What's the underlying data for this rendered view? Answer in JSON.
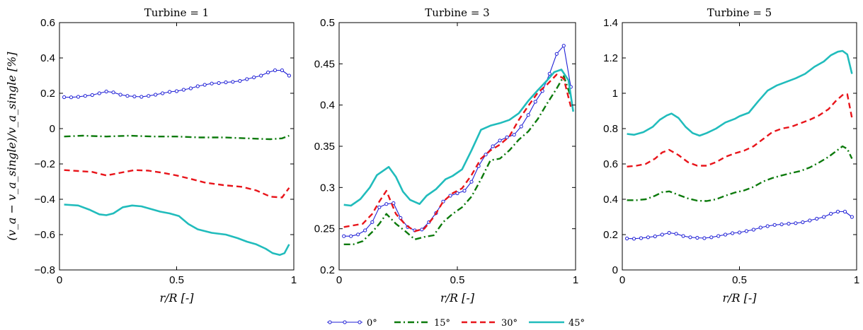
{
  "chart_data": [
    {
      "type": "line",
      "title": "Turbine = 1",
      "xlabel": "r/R [-]",
      "ylabel": "(v_a − v_a_single)/v_a_single [%]",
      "xlim": [
        0,
        1
      ],
      "ylim": [
        -0.8,
        0.6
      ],
      "xticks": [
        "0",
        "0.5",
        "1"
      ],
      "yticks": [
        "−0.8",
        "−0.6",
        "−0.4",
        "−0.2",
        "0",
        "0.2",
        "0.4",
        "0.6"
      ],
      "series": [
        {
          "name": "0°",
          "color": "#1f1fd6",
          "style": "solid-marker",
          "x": [
            0.02,
            0.05,
            0.08,
            0.11,
            0.14,
            0.17,
            0.2,
            0.23,
            0.26,
            0.29,
            0.32,
            0.35,
            0.38,
            0.41,
            0.44,
            0.47,
            0.5,
            0.53,
            0.56,
            0.59,
            0.62,
            0.65,
            0.68,
            0.71,
            0.74,
            0.77,
            0.8,
            0.83,
            0.86,
            0.89,
            0.92,
            0.95,
            0.98
          ],
          "y": [
            0.178,
            0.177,
            0.18,
            0.185,
            0.19,
            0.2,
            0.21,
            0.205,
            0.192,
            0.185,
            0.182,
            0.18,
            0.185,
            0.192,
            0.2,
            0.208,
            0.212,
            0.22,
            0.228,
            0.24,
            0.248,
            0.255,
            0.258,
            0.262,
            0.265,
            0.27,
            0.28,
            0.29,
            0.3,
            0.318,
            0.33,
            0.33,
            0.3
          ]
        },
        {
          "name": "15°",
          "color": "#0c7a0c",
          "style": "dashdot",
          "x": [
            0.02,
            0.1,
            0.2,
            0.3,
            0.4,
            0.5,
            0.6,
            0.7,
            0.8,
            0.9,
            0.95,
            0.98
          ],
          "y": [
            -0.045,
            -0.04,
            -0.045,
            -0.04,
            -0.045,
            -0.045,
            -0.05,
            -0.05,
            -0.055,
            -0.06,
            -0.055,
            -0.04
          ]
        },
        {
          "name": "30°",
          "color": "#e8141a",
          "style": "dashed",
          "x": [
            0.02,
            0.08,
            0.14,
            0.2,
            0.26,
            0.32,
            0.38,
            0.44,
            0.5,
            0.56,
            0.62,
            0.7,
            0.78,
            0.84,
            0.9,
            0.95,
            0.98
          ],
          "y": [
            -0.235,
            -0.24,
            -0.245,
            -0.265,
            -0.25,
            -0.235,
            -0.238,
            -0.25,
            -0.265,
            -0.285,
            -0.305,
            -0.32,
            -0.33,
            -0.35,
            -0.385,
            -0.39,
            -0.335
          ]
        },
        {
          "name": "45°",
          "color": "#21bcbc",
          "style": "solid-thick",
          "x": [
            0.02,
            0.08,
            0.13,
            0.17,
            0.2,
            0.23,
            0.27,
            0.31,
            0.35,
            0.39,
            0.43,
            0.47,
            0.51,
            0.55,
            0.59,
            0.65,
            0.71,
            0.76,
            0.8,
            0.84,
            0.88,
            0.91,
            0.94,
            0.96,
            0.98
          ],
          "y": [
            -0.43,
            -0.435,
            -0.46,
            -0.485,
            -0.49,
            -0.48,
            -0.445,
            -0.435,
            -0.44,
            -0.455,
            -0.47,
            -0.48,
            -0.495,
            -0.54,
            -0.57,
            -0.59,
            -0.6,
            -0.62,
            -0.64,
            -0.655,
            -0.68,
            -0.705,
            -0.715,
            -0.705,
            -0.655
          ]
        }
      ]
    },
    {
      "type": "line",
      "title": "Turbine = 3",
      "xlabel": "r/R [-]",
      "xlim": [
        0,
        1
      ],
      "ylim": [
        0.2,
        0.5
      ],
      "xticks": [
        "0",
        "0.5",
        "1"
      ],
      "yticks": [
        "0.2",
        "0.25",
        "0.3",
        "0.35",
        "0.4",
        "0.45",
        "0.5"
      ],
      "series": [
        {
          "name": "0°",
          "color": "#1f1fd6",
          "style": "solid-marker",
          "x": [
            0.02,
            0.05,
            0.08,
            0.11,
            0.14,
            0.17,
            0.2,
            0.23,
            0.26,
            0.29,
            0.32,
            0.35,
            0.38,
            0.41,
            0.44,
            0.47,
            0.5,
            0.53,
            0.56,
            0.59,
            0.62,
            0.65,
            0.68,
            0.71,
            0.74,
            0.77,
            0.8,
            0.83,
            0.86,
            0.89,
            0.92,
            0.95,
            0.98
          ],
          "y": [
            0.241,
            0.241,
            0.243,
            0.248,
            0.258,
            0.276,
            0.28,
            0.281,
            0.263,
            0.252,
            0.248,
            0.249,
            0.258,
            0.269,
            0.283,
            0.29,
            0.293,
            0.296,
            0.307,
            0.326,
            0.34,
            0.35,
            0.357,
            0.361,
            0.364,
            0.374,
            0.388,
            0.404,
            0.417,
            0.438,
            0.462,
            0.472,
            0.422
          ]
        },
        {
          "name": "15°",
          "color": "#0c7a0c",
          "style": "dashdot",
          "x": [
            0.02,
            0.06,
            0.1,
            0.14,
            0.17,
            0.2,
            0.24,
            0.28,
            0.32,
            0.36,
            0.4,
            0.44,
            0.48,
            0.52,
            0.56,
            0.6,
            0.64,
            0.68,
            0.72,
            0.76,
            0.8,
            0.84,
            0.88,
            0.92,
            0.95,
            0.98
          ],
          "y": [
            0.231,
            0.231,
            0.235,
            0.246,
            0.256,
            0.268,
            0.256,
            0.247,
            0.237,
            0.24,
            0.242,
            0.258,
            0.268,
            0.276,
            0.289,
            0.31,
            0.333,
            0.335,
            0.345,
            0.358,
            0.368,
            0.383,
            0.402,
            0.42,
            0.435,
            0.41
          ]
        },
        {
          "name": "30°",
          "color": "#e8141a",
          "style": "dashed",
          "x": [
            0.02,
            0.06,
            0.1,
            0.14,
            0.17,
            0.2,
            0.24,
            0.28,
            0.32,
            0.36,
            0.4,
            0.44,
            0.48,
            0.52,
            0.56,
            0.6,
            0.64,
            0.68,
            0.72,
            0.76,
            0.8,
            0.84,
            0.88,
            0.92,
            0.95,
            0.98
          ],
          "y": [
            0.252,
            0.254,
            0.256,
            0.268,
            0.283,
            0.296,
            0.268,
            0.255,
            0.247,
            0.25,
            0.264,
            0.283,
            0.293,
            0.299,
            0.315,
            0.335,
            0.345,
            0.352,
            0.362,
            0.382,
            0.399,
            0.415,
            0.425,
            0.437,
            0.432,
            0.398
          ]
        },
        {
          "name": "45°",
          "color": "#21bcbc",
          "style": "solid-thick",
          "x": [
            0.02,
            0.05,
            0.09,
            0.13,
            0.16,
            0.19,
            0.21,
            0.24,
            0.27,
            0.3,
            0.34,
            0.37,
            0.41,
            0.45,
            0.48,
            0.52,
            0.56,
            0.6,
            0.64,
            0.68,
            0.72,
            0.76,
            0.8,
            0.84,
            0.88,
            0.91,
            0.94,
            0.97,
            0.99
          ],
          "y": [
            0.279,
            0.278,
            0.286,
            0.3,
            0.315,
            0.321,
            0.325,
            0.313,
            0.295,
            0.285,
            0.28,
            0.29,
            0.298,
            0.31,
            0.314,
            0.322,
            0.345,
            0.37,
            0.375,
            0.378,
            0.382,
            0.39,
            0.405,
            0.418,
            0.43,
            0.44,
            0.443,
            0.43,
            0.392
          ]
        }
      ]
    },
    {
      "type": "line",
      "title": "Turbine = 5",
      "xlabel": "r/R [-]",
      "xlim": [
        0,
        1
      ],
      "ylim": [
        0,
        1.4
      ],
      "xticks": [
        "0",
        "0.5",
        "1"
      ],
      "yticks": [
        "0",
        "0.2",
        "0.4",
        "0.6",
        "0.8",
        "1",
        "1.2",
        "1.4"
      ],
      "series": [
        {
          "name": "0°",
          "color": "#1f1fd6",
          "style": "solid-marker",
          "x": [
            0.02,
            0.05,
            0.08,
            0.11,
            0.14,
            0.17,
            0.2,
            0.23,
            0.26,
            0.29,
            0.32,
            0.35,
            0.38,
            0.41,
            0.44,
            0.47,
            0.5,
            0.53,
            0.56,
            0.59,
            0.62,
            0.65,
            0.68,
            0.71,
            0.74,
            0.77,
            0.8,
            0.83,
            0.86,
            0.89,
            0.92,
            0.95,
            0.98
          ],
          "y": [
            0.178,
            0.177,
            0.18,
            0.185,
            0.19,
            0.2,
            0.21,
            0.205,
            0.192,
            0.185,
            0.182,
            0.18,
            0.185,
            0.192,
            0.2,
            0.208,
            0.212,
            0.22,
            0.228,
            0.24,
            0.248,
            0.255,
            0.258,
            0.262,
            0.265,
            0.27,
            0.28,
            0.29,
            0.3,
            0.318,
            0.33,
            0.33,
            0.3
          ]
        },
        {
          "name": "15°",
          "color": "#0c7a0c",
          "style": "dashdot",
          "x": [
            0.02,
            0.06,
            0.1,
            0.14,
            0.17,
            0.2,
            0.24,
            0.28,
            0.32,
            0.36,
            0.4,
            0.44,
            0.48,
            0.52,
            0.56,
            0.6,
            0.64,
            0.68,
            0.72,
            0.76,
            0.8,
            0.84,
            0.88,
            0.91,
            0.94,
            0.96,
            0.98
          ],
          "y": [
            0.395,
            0.395,
            0.4,
            0.42,
            0.44,
            0.445,
            0.425,
            0.405,
            0.392,
            0.39,
            0.4,
            0.42,
            0.438,
            0.45,
            0.47,
            0.5,
            0.52,
            0.535,
            0.548,
            0.56,
            0.58,
            0.608,
            0.64,
            0.67,
            0.7,
            0.685,
            0.63
          ]
        },
        {
          "name": "30°",
          "color": "#e8141a",
          "style": "dashed",
          "x": [
            0.02,
            0.06,
            0.1,
            0.14,
            0.17,
            0.2,
            0.24,
            0.28,
            0.32,
            0.36,
            0.4,
            0.44,
            0.48,
            0.52,
            0.56,
            0.6,
            0.64,
            0.68,
            0.72,
            0.76,
            0.8,
            0.84,
            0.88,
            0.91,
            0.94,
            0.96,
            0.98
          ],
          "y": [
            0.585,
            0.59,
            0.6,
            0.63,
            0.665,
            0.68,
            0.65,
            0.61,
            0.59,
            0.59,
            0.61,
            0.64,
            0.66,
            0.675,
            0.7,
            0.74,
            0.78,
            0.8,
            0.81,
            0.83,
            0.85,
            0.875,
            0.91,
            0.955,
            0.99,
            0.995,
            0.86
          ]
        },
        {
          "name": "45°",
          "color": "#21bcbc",
          "style": "solid-thick",
          "x": [
            0.02,
            0.05,
            0.09,
            0.13,
            0.16,
            0.19,
            0.21,
            0.24,
            0.27,
            0.3,
            0.33,
            0.36,
            0.4,
            0.44,
            0.48,
            0.5,
            0.54,
            0.58,
            0.62,
            0.66,
            0.7,
            0.74,
            0.78,
            0.82,
            0.86,
            0.89,
            0.92,
            0.94,
            0.96,
            0.98
          ],
          "y": [
            0.77,
            0.765,
            0.78,
            0.81,
            0.85,
            0.875,
            0.885,
            0.86,
            0.81,
            0.775,
            0.76,
            0.775,
            0.8,
            0.835,
            0.855,
            0.87,
            0.89,
            0.955,
            1.015,
            1.045,
            1.065,
            1.085,
            1.11,
            1.15,
            1.18,
            1.215,
            1.235,
            1.24,
            1.22,
            1.11
          ]
        }
      ]
    }
  ],
  "legend": {
    "placement": "bottom-center",
    "entries": [
      "0°",
      "15°",
      "30°",
      "45°"
    ]
  }
}
